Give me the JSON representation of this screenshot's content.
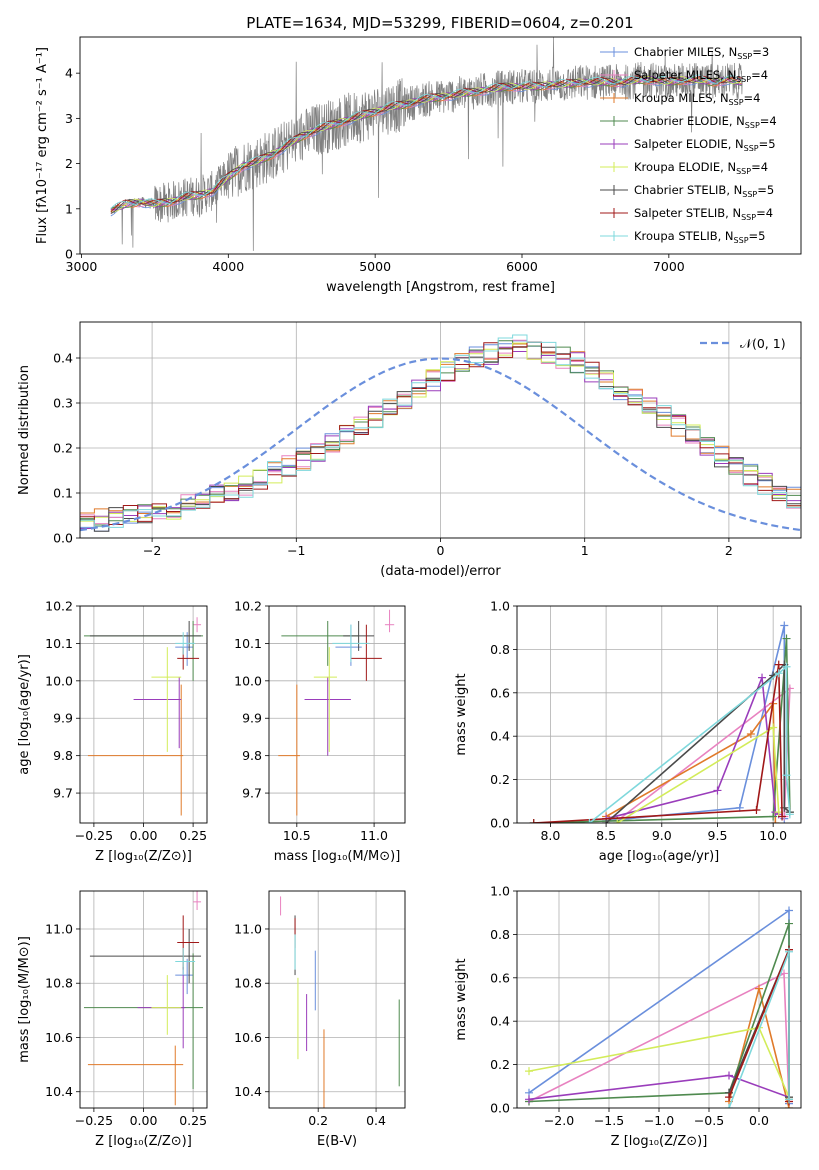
{
  "figure_title": "PLATE=1634, MJD=53299, FIBERID=0604, z=0.201",
  "legend_entries": [
    {
      "label": "Chabrier MILES, N",
      "sub": "SSP",
      "eq": "=3",
      "color": "#6a8fdc"
    },
    {
      "label": "Salpeter MILES, N",
      "sub": "SSP",
      "eq": "=4",
      "color": "#e882c0"
    },
    {
      "label": "Kroupa MILES, N",
      "sub": "SSP",
      "eq": "=4",
      "color": "#e07a2a"
    },
    {
      "label": "Chabrier ELODIE, N",
      "sub": "SSP",
      "eq": "=4",
      "color": "#4f8a4f"
    },
    {
      "label": "Salpeter ELODIE, N",
      "sub": "SSP",
      "eq": "=5",
      "color": "#9a3dbb"
    },
    {
      "label": "Kroupa ELODIE, N",
      "sub": "SSP",
      "eq": "=4",
      "color": "#d3ec5a"
    },
    {
      "label": "Chabrier STELIB, N",
      "sub": "SSP",
      "eq": "=5",
      "color": "#4a4a4a"
    },
    {
      "label": "Salpeter STELIB, N",
      "sub": "SSP",
      "eq": "=4",
      "color": "#a01818"
    },
    {
      "label": "Kroupa STELIB, N",
      "sub": "SSP",
      "eq": "=5",
      "color": "#7fd8dc"
    }
  ],
  "chart_data": [
    {
      "id": "spectrum",
      "type": "line",
      "xlabel": "wavelength [Angstrom, rest frame]",
      "ylabel": "Flux [fλ10⁻¹⁷ erg cm⁻² s⁻¹ A⁻¹]",
      "xlim": [
        2990,
        7900
      ],
      "ylim": [
        0,
        4.8
      ],
      "xticks": [
        3000,
        4000,
        5000,
        6000,
        7000
      ],
      "yticks": [
        0,
        1,
        2,
        3,
        4
      ],
      "data_color": "#808080",
      "continuum_x": [
        3200,
        3300,
        3400,
        3500,
        3600,
        3700,
        3800,
        3900,
        4000,
        4100,
        4200,
        4300,
        4400,
        4500,
        4600,
        4700,
        4800,
        4900,
        5000,
        5100,
        5200,
        5300,
        5400,
        5500,
        5600,
        5700,
        5800,
        5900,
        6000,
        6100,
        6200,
        6300,
        6400,
        6500,
        6600,
        6700,
        6800,
        6900,
        7000,
        7100,
        7200,
        7300,
        7400,
        7500
      ],
      "continuum_y": [
        0.95,
        1.1,
        1.15,
        1.1,
        1.15,
        1.25,
        1.3,
        1.4,
        1.7,
        1.95,
        2.05,
        2.2,
        2.4,
        2.6,
        2.75,
        2.85,
        2.95,
        3.05,
        3.15,
        3.25,
        3.3,
        3.4,
        3.45,
        3.5,
        3.55,
        3.6,
        3.65,
        3.7,
        3.7,
        3.7,
        3.75,
        3.75,
        3.8,
        3.8,
        3.8,
        3.8,
        3.85,
        3.85,
        3.8,
        3.85,
        3.85,
        3.8,
        3.85,
        3.8
      ]
    },
    {
      "id": "residual_hist",
      "type": "histogram",
      "xlabel": "(data-model)/error",
      "ylabel": "Normed distribution",
      "xlim": [
        -2.5,
        2.5
      ],
      "ylim": [
        0,
        0.48
      ],
      "xticks": [
        -2,
        -1,
        0,
        1,
        2
      ],
      "yticks": [
        0.0,
        0.1,
        0.2,
        0.3,
        0.4
      ],
      "reference_curve": {
        "name": "𝒩(0, 1)",
        "color": "#6a8fdc",
        "mean": 0,
        "sigma": 1
      },
      "bin_width": 0.1,
      "bin_start": -2.5,
      "mean_heights": [
        0.035,
        0.04,
        0.045,
        0.05,
        0.055,
        0.06,
        0.065,
        0.075,
        0.085,
        0.095,
        0.105,
        0.115,
        0.13,
        0.145,
        0.16,
        0.175,
        0.19,
        0.21,
        0.23,
        0.25,
        0.27,
        0.29,
        0.31,
        0.33,
        0.35,
        0.37,
        0.385,
        0.4,
        0.41,
        0.42,
        0.43,
        0.42,
        0.41,
        0.4,
        0.39,
        0.37,
        0.35,
        0.33,
        0.31,
        0.29,
        0.27,
        0.25,
        0.23,
        0.2,
        0.18,
        0.16,
        0.14,
        0.12,
        0.105,
        0.09
      ]
    },
    {
      "id": "age_vs_Z",
      "type": "scatter",
      "xlabel": "Z [log₁₀(Z/Z⊙)]",
      "ylabel": "age  [log₁₀(age/yr)]",
      "xlim": [
        -0.32,
        0.32
      ],
      "ylim": [
        9.62,
        10.2
      ],
      "xticks": [
        -0.25,
        0.0,
        0.25
      ],
      "yticks": [
        9.7,
        9.8,
        9.9,
        10.0,
        10.1,
        10.2
      ],
      "points": [
        {
          "x": 0.22,
          "y": 10.09,
          "xerr": [
            0.06,
            0.03
          ],
          "yerr": [
            0.05,
            0.04
          ]
        },
        {
          "x": 0.27,
          "y": 10.15,
          "xerr": [
            0.02,
            0.02
          ],
          "yerr": [
            0.02,
            0.02
          ]
        },
        {
          "x": 0.19,
          "y": 9.8,
          "xerr": [
            0.47,
            0.01
          ],
          "yerr": [
            0.16,
            0.19
          ]
        },
        {
          "x": 0.25,
          "y": 10.12,
          "xerr": [
            0.55,
            0.05
          ],
          "yerr": [
            0.12,
            0.04
          ]
        },
        {
          "x": 0.18,
          "y": 9.95,
          "xerr": [
            0.23,
            0.01
          ],
          "yerr": [
            0.13,
            0.06
          ]
        },
        {
          "x": 0.12,
          "y": 10.01,
          "xerr": [
            0.08,
            0.07
          ],
          "yerr": [
            0.2,
            0.08
          ]
        },
        {
          "x": 0.23,
          "y": 10.12,
          "xerr": [
            0.5,
            0.06
          ],
          "yerr": [
            0.04,
            0.04
          ]
        },
        {
          "x": 0.2,
          "y": 10.06,
          "xerr": [
            0.03,
            0.08
          ],
          "yerr": [
            0.03,
            0.03
          ]
        },
        {
          "x": 0.2,
          "y": 10.1,
          "xerr": [
            0.04,
            0.06
          ],
          "yerr": [
            0.03,
            0.03
          ]
        }
      ]
    },
    {
      "id": "age_vs_mass",
      "type": "scatter",
      "xlabel": "mass [log₁₀(M/M⊙)]",
      "ylabel": "",
      "xlim": [
        10.32,
        11.2
      ],
      "ylim": [
        9.62,
        10.2
      ],
      "xticks": [
        10.5,
        11.0
      ],
      "yticks": [
        9.7,
        9.8,
        9.9,
        10.0,
        10.1,
        10.2
      ],
      "points": [
        {
          "x": 10.85,
          "y": 10.09,
          "xerr": [
            0.1,
            0.07
          ],
          "yerr": [
            0.05,
            0.06
          ]
        },
        {
          "x": 11.1,
          "y": 10.15,
          "xerr": [
            0.03,
            0.03
          ],
          "yerr": [
            0.02,
            0.04
          ]
        },
        {
          "x": 10.5,
          "y": 9.8,
          "xerr": [
            0.12,
            0.02
          ],
          "yerr": [
            0.16,
            0.19
          ]
        },
        {
          "x": 10.7,
          "y": 10.12,
          "xerr": [
            0.3,
            0.2
          ],
          "yerr": [
            0.08,
            0.04
          ]
        },
        {
          "x": 10.7,
          "y": 9.95,
          "xerr": [
            0.15,
            0.15
          ],
          "yerr": [
            0.15,
            0.06
          ]
        },
        {
          "x": 10.71,
          "y": 10.01,
          "xerr": [
            0.1,
            0.05
          ],
          "yerr": [
            0.2,
            0.08
          ]
        },
        {
          "x": 10.9,
          "y": 10.12,
          "xerr": [
            0.1,
            0.1
          ],
          "yerr": [
            0.04,
            0.04
          ]
        },
        {
          "x": 10.95,
          "y": 10.06,
          "xerr": [
            0.1,
            0.1
          ],
          "yerr": [
            0.06,
            0.09
          ]
        },
        {
          "x": 10.85,
          "y": 10.1,
          "xerr": [
            0.12,
            0.12
          ],
          "yerr": [
            0.05,
            0.05
          ]
        }
      ]
    },
    {
      "id": "massweight_vs_age",
      "type": "line",
      "xlabel": "age  [log₁₀(age/yr)]",
      "ylabel": "mass weight",
      "xlim": [
        7.7,
        10.25
      ],
      "ylim": [
        0.0,
        1.0
      ],
      "xticks": [
        8.0,
        8.5,
        9.0,
        9.5,
        10.0
      ],
      "yticks": [
        0.0,
        0.2,
        0.4,
        0.6,
        0.8,
        1.0
      ],
      "series": [
        {
          "x": [
            8.5,
            9.7,
            10.1,
            10.1
          ],
          "y": [
            0.01,
            0.07,
            0.91,
            0.02
          ]
        },
        {
          "x": [
            8.6,
            10.15,
            10.1
          ],
          "y": [
            0.01,
            0.62,
            0.03
          ]
        },
        {
          "x": [
            8.5,
            9.8,
            10.0,
            10.02
          ],
          "y": [
            0.03,
            0.41,
            0.55,
            0.0
          ]
        },
        {
          "x": [
            7.85,
            8.6,
            10.0,
            10.12,
            10.15
          ],
          "y": [
            0.0,
            0.01,
            0.03,
            0.85,
            0.05
          ]
        },
        {
          "x": [
            8.5,
            9.5,
            9.9,
            10.02,
            10.05
          ],
          "y": [
            0.02,
            0.15,
            0.67,
            0.05,
            0.04
          ]
        },
        {
          "x": [
            8.6,
            10.0,
            10.05
          ],
          "y": [
            0.0,
            0.44,
            0.05
          ]
        },
        {
          "x": [
            8.5,
            10.0,
            10.1,
            10.1,
            10.15
          ],
          "y": [
            0.0,
            0.68,
            0.73,
            0.07,
            0.05
          ]
        },
        {
          "x": [
            7.85,
            9.85,
            10.05,
            10.08
          ],
          "y": [
            0.0,
            0.06,
            0.73,
            0.03
          ]
        },
        {
          "x": [
            8.35,
            10.05,
            10.12,
            10.12,
            10.15
          ],
          "y": [
            0.0,
            0.69,
            0.72,
            0.22,
            0.04
          ]
        }
      ]
    },
    {
      "id": "mass_vs_Z",
      "type": "scatter",
      "xlabel": "Z [log₁₀(Z/Z⊙)]",
      "ylabel": "mass [log₁₀(M/M⊙)]",
      "xlim": [
        -0.32,
        0.32
      ],
      "ylim": [
        10.34,
        11.14
      ],
      "xticks": [
        -0.25,
        0.0,
        0.25
      ],
      "yticks": [
        10.4,
        10.6,
        10.8,
        11.0
      ],
      "points": [
        {
          "x": 0.22,
          "y": 10.83,
          "xerr": [
            0.06,
            0.03
          ],
          "yerr": [
            0.07,
            0.06
          ]
        },
        {
          "x": 0.27,
          "y": 11.1,
          "xerr": [
            0.02,
            0.02
          ],
          "yerr": [
            0.03,
            0.04
          ]
        },
        {
          "x": 0.16,
          "y": 10.5,
          "xerr": [
            0.44,
            0.04
          ],
          "yerr": [
            0.15,
            0.07
          ]
        },
        {
          "x": 0.25,
          "y": 10.71,
          "xerr": [
            0.55,
            0.05
          ],
          "yerr": [
            0.3,
            0.2
          ]
        },
        {
          "x": 0.2,
          "y": 10.71,
          "xerr": [
            0.23,
            0.01
          ],
          "yerr": [
            0.15,
            0.15
          ]
        },
        {
          "x": 0.12,
          "y": 10.71,
          "xerr": [
            0.08,
            0.07
          ],
          "yerr": [
            0.1,
            0.12
          ]
        },
        {
          "x": 0.23,
          "y": 10.9,
          "xerr": [
            0.5,
            0.06
          ],
          "yerr": [
            0.1,
            0.1
          ]
        },
        {
          "x": 0.2,
          "y": 10.95,
          "xerr": [
            0.03,
            0.08
          ],
          "yerr": [
            0.1,
            0.1
          ]
        },
        {
          "x": 0.2,
          "y": 10.88,
          "xerr": [
            0.04,
            0.06
          ],
          "yerr": [
            0.05,
            0.05
          ]
        }
      ]
    },
    {
      "id": "mass_vs_ebv",
      "type": "scatter",
      "xlabel": "E(B-V)",
      "ylabel": "",
      "xlim": [
        0.03,
        0.5
      ],
      "ylim": [
        10.34,
        11.14
      ],
      "xticks": [
        0.2,
        0.4
      ],
      "yticks": [
        10.4,
        10.6,
        10.8,
        11.0
      ],
      "vertical_segments": [
        {
          "x": 0.19,
          "y0": 10.7,
          "y1": 10.92
        },
        {
          "x": 0.07,
          "y0": 11.05,
          "y1": 11.12
        },
        {
          "x": 0.22,
          "y0": 10.34,
          "y1": 10.63
        },
        {
          "x": 0.48,
          "y0": 10.42,
          "y1": 10.74
        },
        {
          "x": 0.16,
          "y0": 10.55,
          "y1": 10.76
        },
        {
          "x": 0.13,
          "y0": 10.52,
          "y1": 10.82
        },
        {
          "x": 0.12,
          "y0": 10.83,
          "y1": 11.05
        },
        {
          "x": 0.12,
          "y0": 10.93,
          "y1": 11.04
        },
        {
          "x": 0.12,
          "y0": 10.85,
          "y1": 10.98
        }
      ]
    },
    {
      "id": "massweight_vs_Z",
      "type": "line",
      "xlabel": "Z [log₁₀(Z/Z⊙)]",
      "ylabel": "mass weight",
      "xlim": [
        -2.42,
        0.42
      ],
      "ylim": [
        0.0,
        1.0
      ],
      "xticks": [
        -2.0,
        -1.5,
        -1.0,
        -0.5,
        0.0
      ],
      "yticks": [
        0.0,
        0.2,
        0.4,
        0.6,
        0.8,
        1.0
      ],
      "series": [
        {
          "x": [
            -2.3,
            0.3,
            0.3
          ],
          "y": [
            0.07,
            0.91,
            0.02
          ]
        },
        {
          "x": [
            -2.3,
            0.25,
            0.3
          ],
          "y": [
            0.03,
            0.62,
            0.03
          ]
        },
        {
          "x": [
            -0.3,
            0.0,
            0.3
          ],
          "y": [
            0.03,
            0.55,
            0.0
          ]
        },
        {
          "x": [
            -2.3,
            -0.3,
            0.3,
            0.3
          ],
          "y": [
            0.03,
            0.07,
            0.85,
            0.04
          ]
        },
        {
          "x": [
            -2.3,
            -0.3,
            0.3
          ],
          "y": [
            0.04,
            0.15,
            0.05
          ]
        },
        {
          "x": [
            -2.3,
            0.0,
            0.3
          ],
          "y": [
            0.17,
            0.37,
            0.05
          ]
        },
        {
          "x": [
            -0.3,
            0.3,
            0.3
          ],
          "y": [
            0.07,
            0.73,
            0.05
          ]
        },
        {
          "x": [
            -0.3,
            0.3,
            0.3
          ],
          "y": [
            0.05,
            0.73,
            0.03
          ]
        },
        {
          "x": [
            -0.3,
            0.3,
            0.3
          ],
          "y": [
            0.0,
            0.72,
            0.04
          ]
        }
      ]
    }
  ]
}
